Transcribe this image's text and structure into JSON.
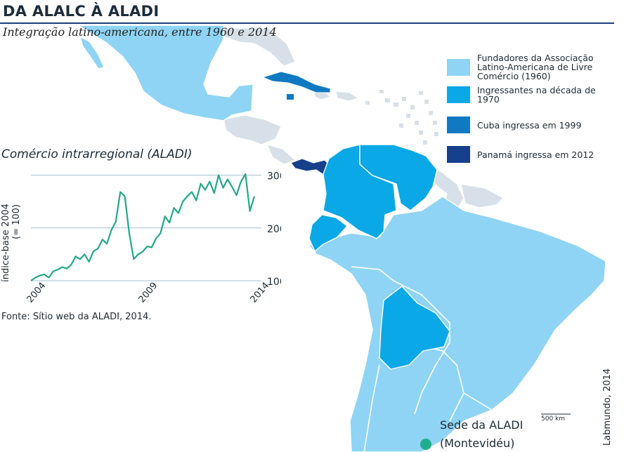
{
  "header": {
    "title": "DA ALALC À ALADI",
    "subtitle": "Integração latino-americana, entre 1960 e 2014"
  },
  "legend": {
    "items": [
      {
        "label": "Fundadores da Associação Latino-Americana de Livre Comércio (1960)",
        "color": "#8fd4f4"
      },
      {
        "label": "Ingressantes na década de 1970",
        "color": "#0aa8e6"
      },
      {
        "label": "Cuba ingressa em 1999",
        "color": "#0f7ac2"
      },
      {
        "label": "Panamá ingressa em 2012",
        "color": "#163f8c"
      }
    ]
  },
  "map": {
    "other_countries_color": "#d7e0e8",
    "scale_label": "500 km",
    "headquarters": {
      "name": "Sede da ALADI",
      "city": "(Montevidéu)",
      "marker_color": "#1fae8e"
    }
  },
  "inset": {
    "title": "Comércio intrarregional (ALADI)",
    "source": "Fonte: Sítio web da ALADI, 2014.",
    "chart_data": {
      "type": "line",
      "ylabel": "índice-base 2004 (= 100)",
      "x_ticks": [
        "2004",
        "2009",
        "2014"
      ],
      "y_ticks": [
        100,
        200,
        300
      ],
      "ylim": [
        100,
        310
      ],
      "xlim": [
        2004,
        2014
      ],
      "line_color": "#22a88a",
      "x": [
        2004.0,
        2004.2,
        2004.4,
        2004.6,
        2004.8,
        2005.0,
        2005.2,
        2005.4,
        2005.6,
        2005.8,
        2006.0,
        2006.2,
        2006.4,
        2006.6,
        2006.8,
        2007.0,
        2007.2,
        2007.4,
        2007.6,
        2007.8,
        2008.0,
        2008.2,
        2008.4,
        2008.6,
        2008.8,
        2009.0,
        2009.2,
        2009.4,
        2009.6,
        2009.8,
        2010.0,
        2010.2,
        2010.4,
        2010.6,
        2010.8,
        2011.0,
        2011.2,
        2011.4,
        2011.6,
        2011.8,
        2012.0,
        2012.2,
        2012.4,
        2012.6,
        2012.8,
        2013.0,
        2013.2,
        2013.4,
        2013.6,
        2013.8,
        2014.0
      ],
      "values": [
        100,
        106,
        110,
        112,
        106,
        118,
        121,
        126,
        123,
        130,
        146,
        141,
        150,
        136,
        156,
        161,
        178,
        170,
        196,
        212,
        268,
        260,
        190,
        141,
        150,
        155,
        165,
        163,
        180,
        190,
        222,
        210,
        238,
        228,
        250,
        260,
        268,
        252,
        284,
        272,
        288,
        266,
        300,
        276,
        292,
        278,
        262,
        288,
        302,
        232,
        260
      ]
    }
  },
  "credit": "Labmundo, 2014"
}
